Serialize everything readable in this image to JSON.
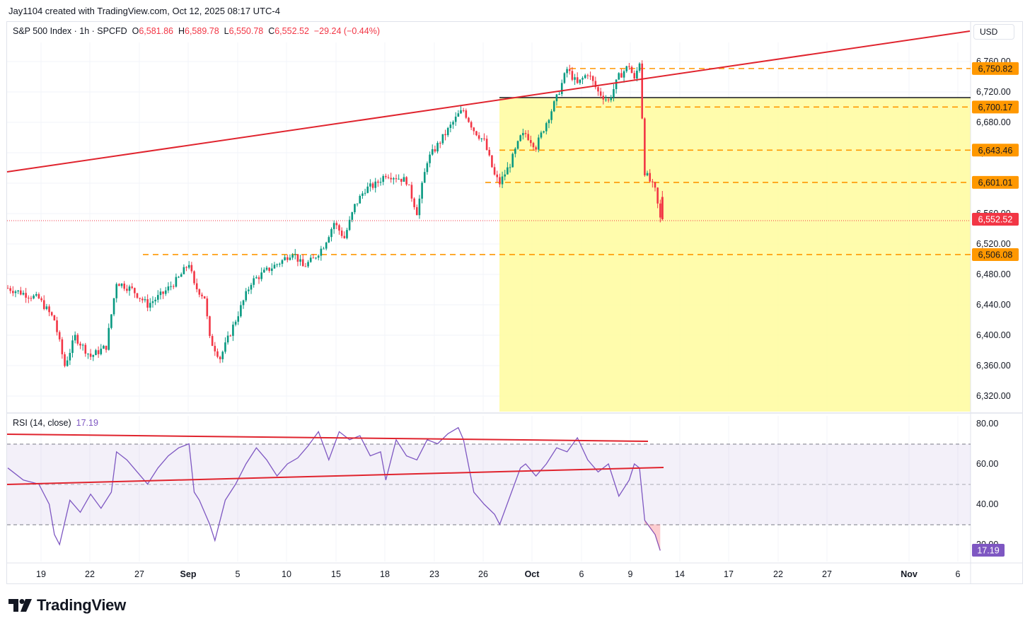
{
  "attribution": "Jay1104 created with TradingView.com, Oct 12, 2025 08:17 UTC-4",
  "header": {
    "symbol": "S&P 500 Index · 1h · SPCFD",
    "o_label": "O",
    "o_value": "6,581.86",
    "h_label": "H",
    "h_value": "6,589.78",
    "l_label": "L",
    "l_value": "6,550.78",
    "c_label": "C",
    "c_value": "6,552.52",
    "change": "−29.24 (−0.44%)"
  },
  "currency_button": "USD",
  "rsi_legend": {
    "label": "RSI (14, close)",
    "value": "17.19"
  },
  "brand": "TradingView",
  "colors": {
    "up": "#089981",
    "down": "#f23645",
    "trend": "#e0242e",
    "level": "#ff9800",
    "zone": "#fffb9e",
    "rsi": "#7e57c2",
    "rsi_band": "#f2eefb"
  },
  "chart_data": [
    {
      "type": "candlestick",
      "title": "S&P 500 Index · 1h · SPCFD",
      "x_tick_labels": [
        "19",
        "22",
        "27",
        "Sep",
        "5",
        "10",
        "15",
        "18",
        "23",
        "26",
        "Oct",
        "6",
        "9",
        "14",
        "17",
        "22",
        "27",
        "Nov",
        "6"
      ],
      "y_tick_labels": [
        "6,760.00",
        "6,720.00",
        "6,680.00",
        "6,640.00",
        "6,600.00",
        "6,560.00",
        "6,520.00",
        "6,480.00",
        "6,440.00",
        "6,400.00",
        "6,360.00",
        "6,320.00"
      ],
      "ylim": [
        6313,
        6790
      ],
      "ohlc_last": {
        "open": 6581.86,
        "high": 6589.78,
        "low": 6550.78,
        "close": 6552.52
      },
      "price_path": [
        [
          0,
          6462
        ],
        [
          3,
          6455
        ],
        [
          6,
          6448
        ],
        [
          9,
          6420
        ],
        [
          11,
          6360
        ],
        [
          13,
          6398
        ],
        [
          16,
          6372
        ],
        [
          19,
          6385
        ],
        [
          21,
          6470
        ],
        [
          24,
          6460
        ],
        [
          27,
          6440
        ],
        [
          30,
          6455
        ],
        [
          33,
          6475
        ],
        [
          35,
          6495
        ],
        [
          36,
          6465
        ],
        [
          38,
          6450
        ],
        [
          39,
          6395
        ],
        [
          41,
          6370
        ],
        [
          44,
          6420
        ],
        [
          47,
          6470
        ],
        [
          50,
          6485
        ],
        [
          53,
          6498
        ],
        [
          55,
          6510
        ],
        [
          57,
          6490
        ],
        [
          59,
          6500
        ],
        [
          61,
          6518
        ],
        [
          63,
          6548
        ],
        [
          65,
          6528
        ],
        [
          67,
          6570
        ],
        [
          69,
          6592
        ],
        [
          71,
          6598
        ],
        [
          73,
          6612
        ],
        [
          75,
          6608
        ],
        [
          77,
          6603
        ],
        [
          79,
          6562
        ],
        [
          81,
          6630
        ],
        [
          83,
          6650
        ],
        [
          85,
          6670
        ],
        [
          87,
          6690
        ],
        [
          88,
          6696
        ],
        [
          90,
          6670
        ],
        [
          92,
          6655
        ],
        [
          94,
          6610
        ],
        [
          95,
          6600
        ],
        [
          97,
          6625
        ],
        [
          99,
          6660
        ],
        [
          100,
          6665
        ],
        [
          102,
          6648
        ],
        [
          104,
          6680
        ],
        [
          106,
          6712
        ],
        [
          108,
          6750
        ],
        [
          110,
          6730
        ],
        [
          112,
          6745
        ],
        [
          114,
          6720
        ],
        [
          116,
          6708
        ],
        [
          118,
          6740
        ],
        [
          120,
          6755
        ],
        [
          121,
          6735
        ],
        [
          122,
          6760
        ],
        [
          123,
          6615
        ],
        [
          125,
          6590
        ],
        [
          126,
          6553
        ]
      ],
      "last_price": "6,552.52",
      "level_labels": [
        "6,750.82",
        "6,700.17",
        "6,643.46",
        "6,601.01",
        "6,506.08"
      ],
      "levels": [
        6750.82,
        6700.17,
        6643.46,
        6601.01,
        6506.08
      ],
      "black_level": 6711
    },
    {
      "type": "line",
      "title": "RSI (14, close)",
      "y_tick_labels": [
        "80.00",
        "60.00",
        "40.00",
        "20.00"
      ],
      "ylim": [
        14,
        84
      ],
      "bands": [
        30,
        50,
        70
      ],
      "last_value": "17.19",
      "values": [
        [
          0,
          58
        ],
        [
          3,
          52
        ],
        [
          6,
          50
        ],
        [
          8,
          40
        ],
        [
          9,
          25
        ],
        [
          10,
          20
        ],
        [
          12,
          42
        ],
        [
          14,
          36
        ],
        [
          16,
          45
        ],
        [
          18,
          38
        ],
        [
          20,
          46
        ],
        [
          21,
          66
        ],
        [
          23,
          62
        ],
        [
          25,
          56
        ],
        [
          27,
          50
        ],
        [
          29,
          58
        ],
        [
          31,
          64
        ],
        [
          33,
          68
        ],
        [
          35,
          70
        ],
        [
          36,
          46
        ],
        [
          37,
          42
        ],
        [
          39,
          30
        ],
        [
          40,
          22
        ],
        [
          42,
          42
        ],
        [
          44,
          50
        ],
        [
          46,
          60
        ],
        [
          48,
          68
        ],
        [
          50,
          62
        ],
        [
          52,
          54
        ],
        [
          54,
          60
        ],
        [
          56,
          63
        ],
        [
          58,
          69
        ],
        [
          60,
          76
        ],
        [
          62,
          62
        ],
        [
          64,
          76
        ],
        [
          66,
          72
        ],
        [
          68,
          74
        ],
        [
          70,
          64
        ],
        [
          72,
          66
        ],
        [
          73,
          52
        ],
        [
          75,
          72
        ],
        [
          77,
          64
        ],
        [
          79,
          62
        ],
        [
          81,
          72
        ],
        [
          83,
          70
        ],
        [
          85,
          75
        ],
        [
          87,
          78
        ],
        [
          88,
          72
        ],
        [
          90,
          46
        ],
        [
          92,
          40
        ],
        [
          94,
          35
        ],
        [
          95,
          30
        ],
        [
          97,
          44
        ],
        [
          99,
          58
        ],
        [
          100,
          60
        ],
        [
          102,
          54
        ],
        [
          104,
          60
        ],
        [
          106,
          68
        ],
        [
          108,
          66
        ],
        [
          110,
          73
        ],
        [
          112,
          62
        ],
        [
          114,
          56
        ],
        [
          116,
          60
        ],
        [
          118,
          44
        ],
        [
          120,
          52
        ],
        [
          121,
          60
        ],
        [
          122,
          58
        ],
        [
          123,
          32
        ],
        [
          125,
          25
        ],
        [
          126,
          17
        ]
      ]
    }
  ]
}
